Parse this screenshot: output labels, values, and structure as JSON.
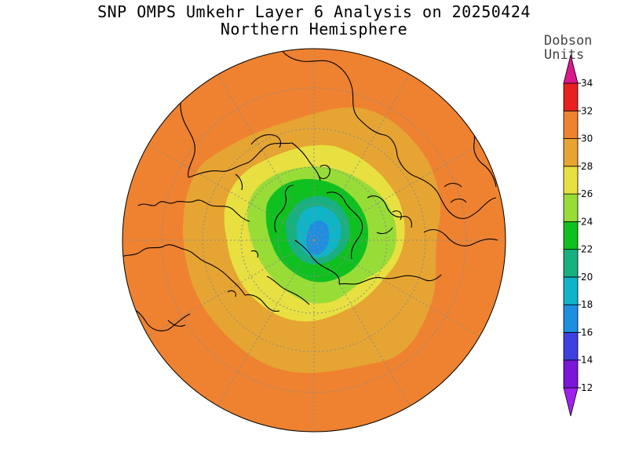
{
  "header": {
    "title": "SNP OMPS Umkehr Layer 6 Analysis on 20250424",
    "subtitle": "Northern Hemisphere"
  },
  "colorbar": {
    "unit_line1": "Dobson",
    "unit_line2": "Units",
    "ticks": [
      12,
      14,
      16,
      18,
      20,
      22,
      24,
      26,
      28,
      30,
      32,
      34
    ],
    "bins": [
      {
        "from": 10,
        "to": 12,
        "color": "#a020f0"
      },
      {
        "from": 12,
        "to": 14,
        "color": "#7a16d8"
      },
      {
        "from": 14,
        "to": 16,
        "color": "#4040e0"
      },
      {
        "from": 16,
        "to": 18,
        "color": "#1e8ee0"
      },
      {
        "from": 18,
        "to": 20,
        "color": "#10b4c8"
      },
      {
        "from": 20,
        "to": 22,
        "color": "#18b080"
      },
      {
        "from": 22,
        "to": 24,
        "color": "#10c020"
      },
      {
        "from": 24,
        "to": 26,
        "color": "#98dc38"
      },
      {
        "from": 26,
        "to": 28,
        "color": "#e8e040"
      },
      {
        "from": 28,
        "to": 30,
        "color": "#e6a432"
      },
      {
        "from": 30,
        "to": 32,
        "color": "#ee8230"
      },
      {
        "from": 32,
        "to": 34,
        "color": "#e82020"
      },
      {
        "from": 34,
        "to": 36,
        "color": "#d81a8a"
      }
    ]
  },
  "map": {
    "projection": "north polar stereographic",
    "background_color": "#ee8230",
    "grid": true
  }
}
